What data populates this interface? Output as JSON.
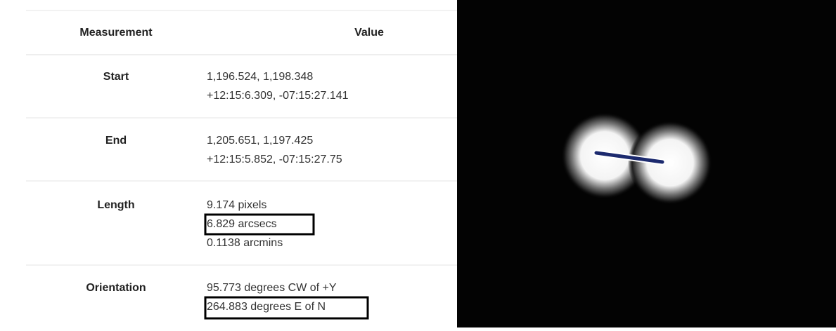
{
  "table": {
    "header": [
      "Measurement",
      "Value"
    ],
    "rows": [
      {
        "label": "Start",
        "lines": [
          "1,196.524, 1,198.348",
          "+12:15:6.309, -07:15:27.141"
        ]
      },
      {
        "label": "End",
        "lines": [
          "1,205.651, 1,197.425",
          "+12:15:5.852, -07:15:27.75"
        ]
      },
      {
        "label": "Length",
        "lines": [
          "9.174 pixels",
          "6.829 arcsecs",
          "0.1138 arcmins"
        ]
      },
      {
        "label": "Orientation",
        "lines": [
          "95.773 degrees CW of +Y",
          "264.883 degrees E of N"
        ]
      }
    ]
  }
}
